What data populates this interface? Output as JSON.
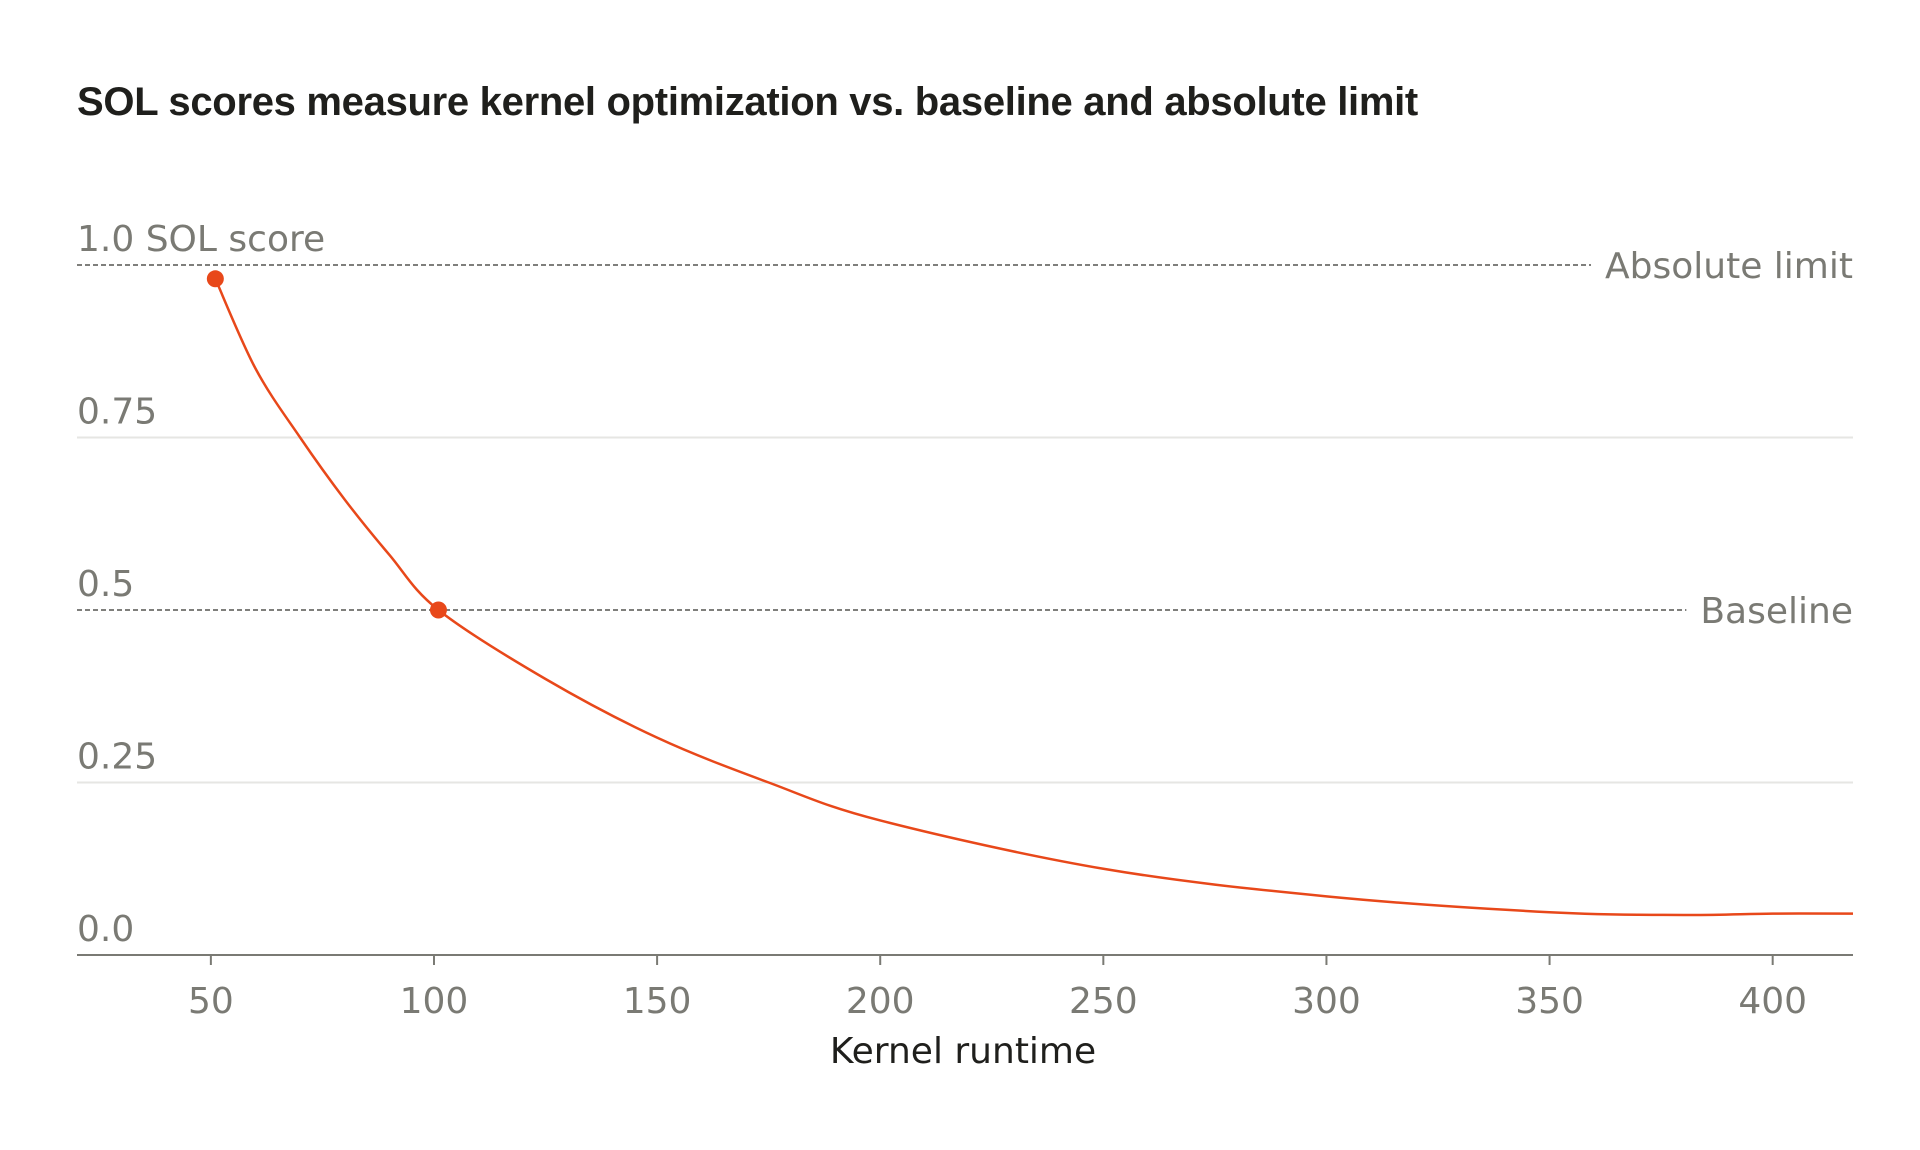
{
  "chart_data": {
    "type": "line",
    "title": "SOL scores measure kernel optimization vs. baseline and absolute limit",
    "xlabel": "Kernel runtime",
    "ylabel_suffix": "SOL score",
    "xlim": [
      20,
      418
    ],
    "ylim": [
      0,
      1.0
    ],
    "x_ticks": [
      50,
      100,
      150,
      200,
      250,
      300,
      350,
      400
    ],
    "x_tick_labels": [
      "50",
      "100",
      "150",
      "200",
      "250",
      "300",
      "350",
      "400"
    ],
    "y_ticks": [
      0,
      0.25,
      0.5,
      0.75,
      1.0
    ],
    "y_tick_labels": [
      "0.0",
      "0.25",
      "0.5",
      "0.75",
      "1.0"
    ],
    "grid": true,
    "reference_lines": [
      {
        "label": "Absolute limit",
        "y": 1.0
      },
      {
        "label": "Baseline",
        "y": 0.5
      }
    ],
    "series": [
      {
        "color": "#e8481a",
        "x": [
          51,
          60,
          70,
          80,
          90,
          101,
          125,
          150,
          175,
          200,
          250,
          300,
          350,
          380,
          400,
          418
        ],
        "y": [
          0.98,
          0.85,
          0.75,
          0.66,
          0.58,
          0.5,
          0.4,
          0.315,
          0.25,
          0.195,
          0.125,
          0.085,
          0.062,
          0.058,
          0.06,
          0.06
        ]
      }
    ],
    "markers": [
      {
        "x": 51,
        "y": 0.98
      },
      {
        "x": 101,
        "y": 0.5
      }
    ],
    "colors": {
      "line": "#e8481a",
      "grid": "#e6e6e3",
      "reference": "#555551",
      "axis": "#7a7a74"
    }
  }
}
